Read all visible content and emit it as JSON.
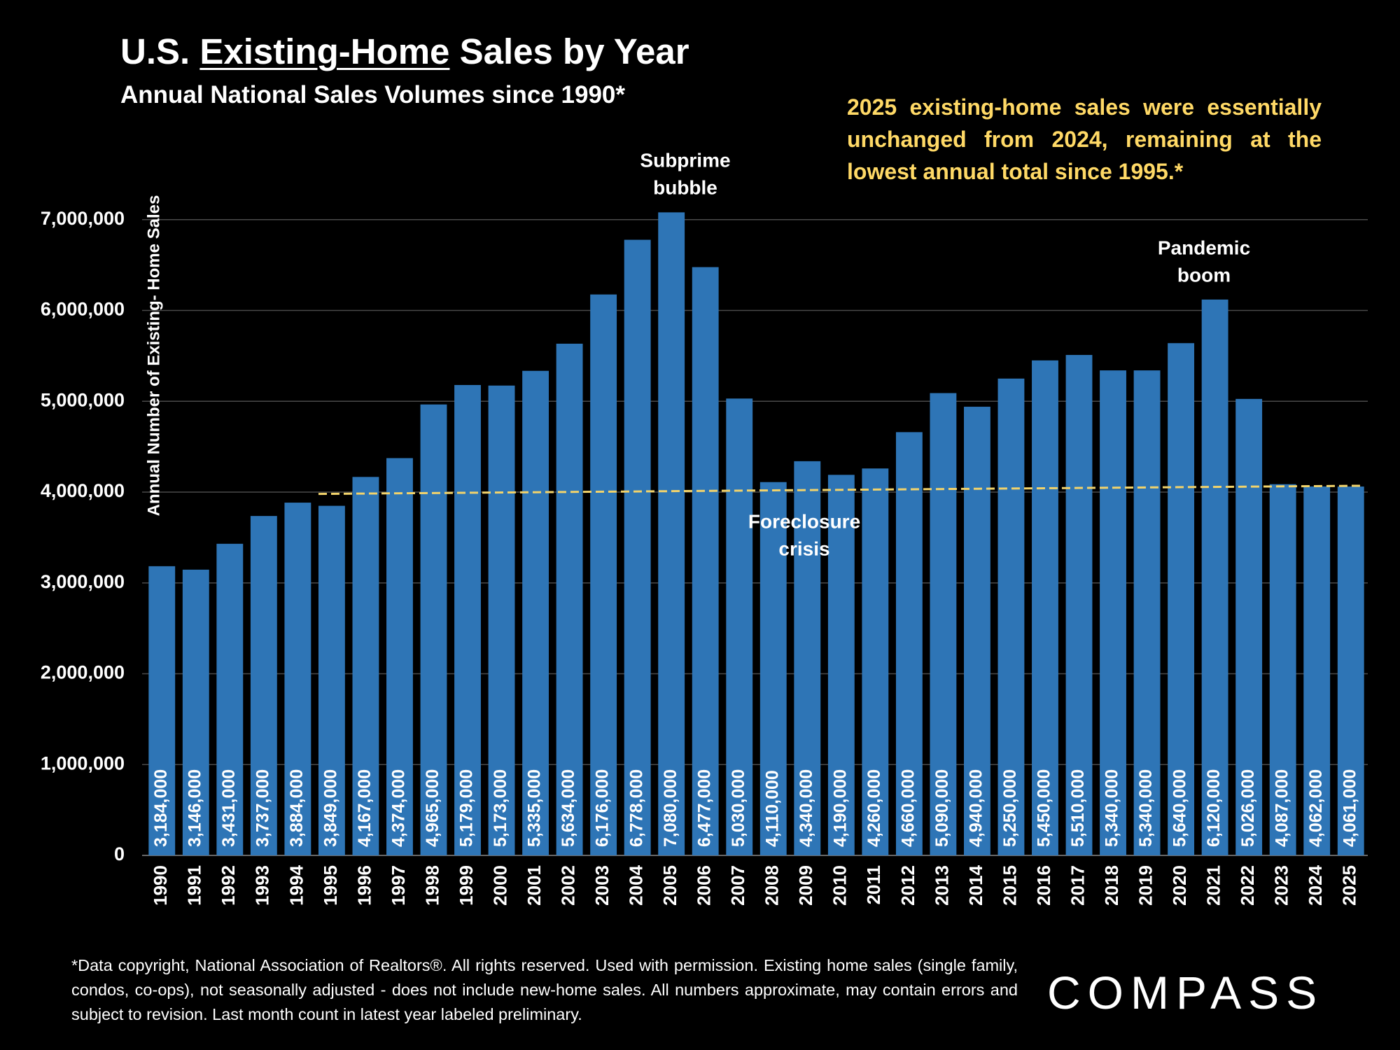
{
  "chart_data": {
    "type": "bar",
    "title": [
      "U.S.",
      "Existing-Home",
      "Sales by Year"
    ],
    "subtitle": "Annual National Sales Volumes since 1990*",
    "callout": "2025 existing-home sales were essentially unchanged from 2024, remaining at the lowest annual total since 1995.*",
    "y_label": "Annual Number of Existing- Home Sales",
    "categories": [
      "1990",
      "1991",
      "1992",
      "1993",
      "1994",
      "1995",
      "1996",
      "1997",
      "1998",
      "1999",
      "2000",
      "2001",
      "2002",
      "2003",
      "2004",
      "2005",
      "2006",
      "2007",
      "2008",
      "2009",
      "2010",
      "2011",
      "2012",
      "2013",
      "2014",
      "2015",
      "2016",
      "2017",
      "2018",
      "2019",
      "2020",
      "2021",
      "2022",
      "2023",
      "2024",
      "2025"
    ],
    "values": [
      3184000,
      3146000,
      3431000,
      3737000,
      3884000,
      3849000,
      4167000,
      4374000,
      4965000,
      5179000,
      5173000,
      5335000,
      5634000,
      6176000,
      6778000,
      7080000,
      6477000,
      5030000,
      4110000,
      4340000,
      4190000,
      4260000,
      4660000,
      5090000,
      4940000,
      5250000,
      5450000,
      5510000,
      5340000,
      5340000,
      5640000,
      6120000,
      5026000,
      4087000,
      4062000,
      4061000
    ],
    "value_labels": [
      "3,184,000",
      "3,146,000",
      "3,431,000",
      "3,737,000",
      "3,884,000",
      "3,849,000",
      "4,167,000",
      "4,374,000",
      "4,965,000",
      "5,179,000",
      "5,173,000",
      "5,335,000",
      "5,634,000",
      "6,176,000",
      "6,778,000",
      "7,080,000",
      "6,477,000",
      "5,030,000",
      "4,110,000",
      "4,340,000",
      "4,190,000",
      "4,260,000",
      "4,660,000",
      "5,090,000",
      "4,940,000",
      "5,250,000",
      "5,450,000",
      "5,510,000",
      "5,340,000",
      "5,340,000",
      "5,640,000",
      "6,120,000",
      "5,026,000",
      "4,087,000",
      "4,062,000",
      "4,061,000"
    ],
    "color": "#2e75b6",
    "ylim": [
      0,
      8000000
    ],
    "yticks": [
      0,
      {
        "value": 1000000,
        "label": "1,000,000"
      },
      {
        "value": 2000000,
        "label": "2,000,000"
      },
      {
        "value": 3000000,
        "label": "3,000,000"
      },
      {
        "value": 4000000,
        "label": "4,000,000"
      },
      {
        "value": 5000000,
        "label": "5,000,000"
      },
      {
        "value": 6000000,
        "label": "6,000,000"
      },
      {
        "value": 7000000,
        "label": "7,000,000"
      }
    ],
    "grid": true,
    "trend": {
      "x": [
        "1995",
        "2025"
      ],
      "values": [
        3980000,
        4070000
      ],
      "color": "#f2d36b"
    },
    "annotations": [
      {
        "lines": [
          "Subprime",
          "bubble"
        ]
      },
      {
        "lines": [
          "Pandemic",
          "boom"
        ]
      },
      {
        "lines": [
          "Foreclosure",
          "crisis"
        ]
      }
    ],
    "footnote": "*Data copyright, National Association of Realtors®. All rights reserved. Used with permission. Existing home sales (single family, condos, co-ops), not seasonally adjusted - does not include new-home sales. All numbers approximate, may contain errors and subject to revision. Last month count in latest year labeled preliminary.",
    "logo": "COMPASS"
  }
}
